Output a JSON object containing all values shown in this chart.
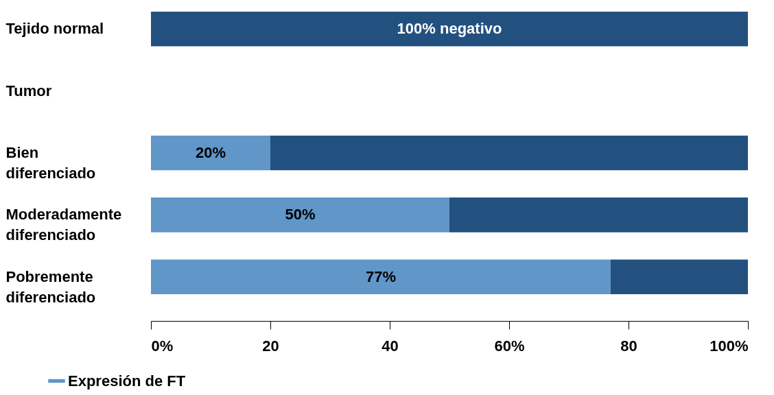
{
  "chart_data": {
    "type": "bar",
    "orientation": "horizontal",
    "stacked": true,
    "categories": [
      "Tejido normal",
      "Tumor",
      "Bien diferenciado",
      "Moderadamente diferenciado",
      "Pobremente diferenciado"
    ],
    "series": [
      {
        "name": "Expresión de FT",
        "color": "#6096c8",
        "values": [
          null,
          null,
          20,
          50,
          77
        ],
        "value_labels": [
          null,
          null,
          "20%",
          "50%",
          "77%"
        ]
      },
      {
        "color": "#23517f",
        "values": [
          100,
          null,
          80,
          50,
          23
        ],
        "value_labels": [
          "100% negativo",
          null,
          null,
          null,
          null
        ]
      }
    ],
    "xlim": [
      0,
      100
    ],
    "xticks": [
      {
        "value": 0,
        "label": "0%"
      },
      20,
      40,
      {
        "value": 60,
        "label": "60%"
      },
      80,
      {
        "value": 100,
        "label": "100%"
      }
    ],
    "grid": false,
    "legend": "bottom left"
  }
}
